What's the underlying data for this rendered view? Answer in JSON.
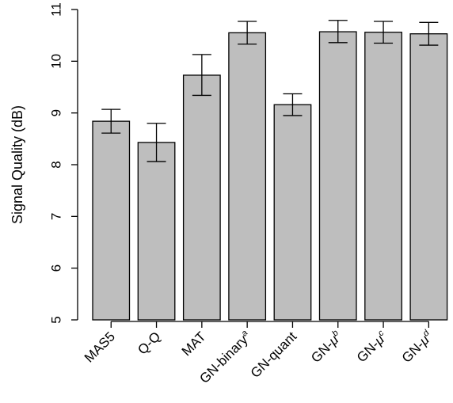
{
  "chart_data": {
    "type": "bar",
    "title": "",
    "xlabel": "",
    "ylabel": "Signal Quality (dB)",
    "ylim": [
      5,
      11
    ],
    "yticks": [
      5,
      6,
      7,
      8,
      9,
      10,
      11
    ],
    "ytick_labels": [
      "5",
      "6",
      "7",
      "8",
      "9",
      "10",
      "11"
    ],
    "grid": false,
    "error_bars": true,
    "bar_color": "#bebebe",
    "categories": [
      {
        "base": "MAS5",
        "mu": "",
        "sup": ""
      },
      {
        "base": "Q-Q",
        "mu": "",
        "sup": ""
      },
      {
        "base": "MAT",
        "mu": "",
        "sup": ""
      },
      {
        "base": "GN-binary",
        "mu": "",
        "sup": "a"
      },
      {
        "base": "GN-quant",
        "mu": "",
        "sup": ""
      },
      {
        "base": "GN-",
        "mu": "μ",
        "sup": "b"
      },
      {
        "base": "GN-",
        "mu": "μ",
        "sup": "c"
      },
      {
        "base": "GN-",
        "mu": "μ",
        "sup": "d"
      }
    ],
    "values": [
      8.84,
      8.43,
      9.73,
      10.55,
      9.16,
      10.57,
      10.56,
      10.53
    ],
    "err_low": [
      8.61,
      8.06,
      9.34,
      10.33,
      8.95,
      10.36,
      10.35,
      10.31
    ],
    "err_high": [
      9.07,
      8.8,
      10.13,
      10.77,
      9.37,
      10.79,
      10.77,
      10.75
    ]
  }
}
